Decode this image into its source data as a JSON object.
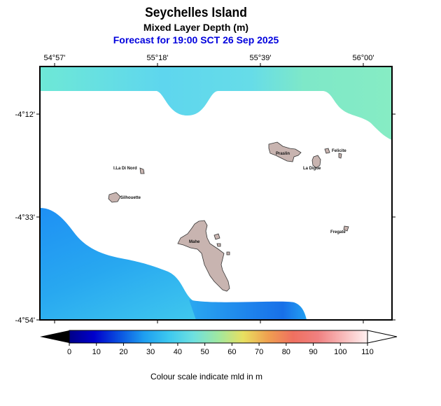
{
  "title": "Seychelles Island",
  "subtitle": "Mixed Layer Depth (m)",
  "forecast": "Forecast for  19:00 SCT 26 Sep 2025",
  "map": {
    "lon_ticks": [
      "54°57'",
      "55°18'",
      "55°39'",
      "56°00'"
    ],
    "lat_ticks": [
      "-4°12'",
      "-4°33'",
      "-4°54'"
    ],
    "islands": [
      {
        "name": "Praslin"
      },
      {
        "name": "Felicite"
      },
      {
        "name": "La Digue"
      },
      {
        "name": "I.La Di Nord"
      },
      {
        "name": "Silhouette"
      },
      {
        "name": "Mahe"
      },
      {
        "name": "Fregate"
      }
    ]
  },
  "colorbar": {
    "min": 0,
    "max": 110,
    "ticks": [
      "0",
      "10",
      "20",
      "30",
      "40",
      "50",
      "60",
      "70",
      "80",
      "90",
      "100",
      "110"
    ],
    "colors": [
      "#000088",
      "#0000cc",
      "#0a50e0",
      "#1e9ef0",
      "#3cc8f0",
      "#6ee0e0",
      "#a0e8a0",
      "#e8e060",
      "#f0a050",
      "#f07060",
      "#f08080",
      "#f8b8b8",
      "#fff0f0"
    ],
    "caption": "Colour scale indicate mld in m"
  }
}
